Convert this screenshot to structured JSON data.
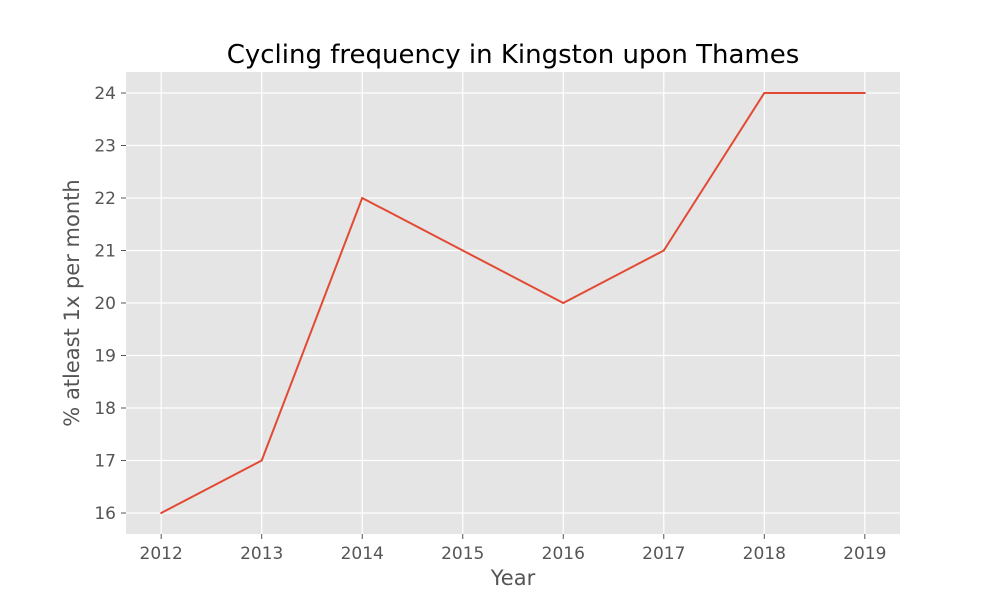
{
  "chart_data": {
    "type": "line",
    "title": "Cycling frequency in Kingston upon Thames",
    "xlabel": "Year",
    "ylabel": "% atleast 1x per month",
    "x": [
      2012,
      2013,
      2014,
      2015,
      2016,
      2017,
      2018,
      2019
    ],
    "series": [
      {
        "values": [
          16,
          17,
          22,
          21,
          20,
          21,
          24,
          24
        ],
        "color": "#E24A33"
      }
    ],
    "xticks": [
      "2012",
      "2013",
      "2014",
      "2015",
      "2016",
      "2017",
      "2018",
      "2019"
    ],
    "yticks": [
      "16",
      "17",
      "18",
      "19",
      "20",
      "21",
      "22",
      "23",
      "24"
    ],
    "xlim": [
      2011.65,
      2019.35
    ],
    "ylim": [
      15.6,
      24.4
    ],
    "grid": true,
    "colors": {
      "plot_background": "#E5E5E5",
      "grid": "#FFFFFF",
      "tick_text": "#555555",
      "title": "#000000"
    }
  }
}
